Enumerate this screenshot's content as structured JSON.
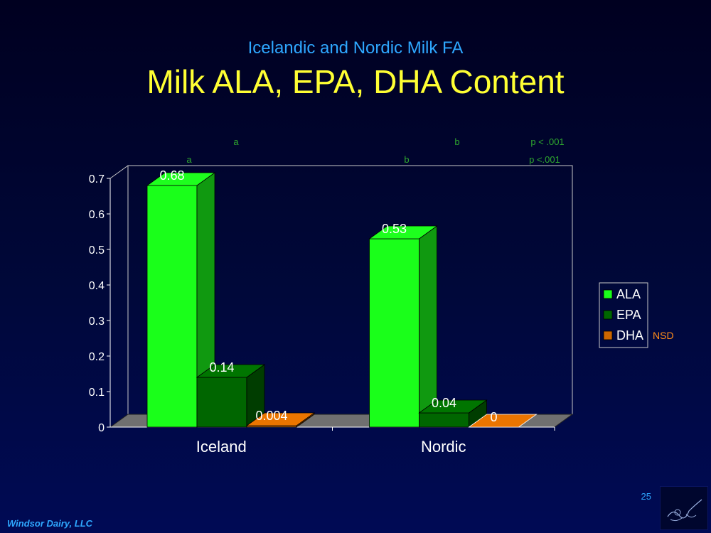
{
  "slide": {
    "subtitle": "Icelandic and Nordic Milk FA",
    "title": "Milk ALA, EPA, DHA Content",
    "footer": "Windsor Dairy, LLC",
    "page_number": "25"
  },
  "chart_data": {
    "type": "bar",
    "style": "3d-clustered",
    "categories": [
      "Iceland",
      "Nordic"
    ],
    "series": [
      {
        "name": "ALA",
        "values": [
          0.68,
          0.53
        ],
        "labels": [
          "0.68",
          "0.53"
        ],
        "color": "#1aff1a"
      },
      {
        "name": "EPA",
        "values": [
          0.14,
          0.04
        ],
        "labels": [
          "0.14",
          "0.04"
        ],
        "color": "#006600"
      },
      {
        "name": "DHA",
        "values": [
          0.004,
          0
        ],
        "labels": [
          "0.004",
          "0"
        ],
        "color": "#cc6600"
      }
    ],
    "ylim": [
      0,
      0.7
    ],
    "yticks": [
      "0",
      "0.1",
      "0.2",
      "0.3",
      "0.4",
      "0.5",
      "0.6",
      "0.7"
    ],
    "grid": false,
    "legend_position": "right",
    "legend_note": "NSD",
    "annotations": {
      "row1": {
        "iceland": "a",
        "nordic": "b",
        "p": "p < .001"
      },
      "row2": {
        "iceland": "a",
        "nordic": "b",
        "p": "p <.001"
      }
    },
    "colors": {
      "label": "#ffffff",
      "annotation": "#2ea82e",
      "nsd": "#ff8c1a",
      "floor": "#707070"
    }
  }
}
